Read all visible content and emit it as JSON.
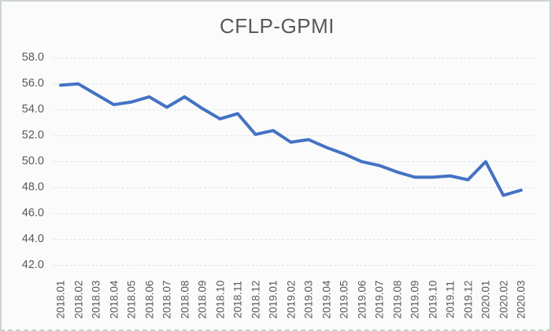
{
  "chart": {
    "title": "CFLP-GPMI"
  },
  "chart_data": {
    "type": "line",
    "title": "CFLP-GPMI",
    "categories": [
      "2018.01",
      "2018.02",
      "2018.03",
      "2018.04",
      "2018.05",
      "2018.06",
      "2018.07",
      "2018.08",
      "2018.09",
      "2018.10",
      "2018.11",
      "2018.12",
      "2019.01",
      "2019.02",
      "2019.03",
      "2019.04",
      "2019.05",
      "2019.06",
      "2019.07",
      "2019.08",
      "2019.09",
      "2019.10",
      "2019.11",
      "2019.12",
      "2020.01",
      "2020.02",
      "2020.03"
    ],
    "values": [
      55.9,
      56.0,
      55.2,
      54.4,
      54.6,
      55.0,
      54.2,
      55.0,
      54.1,
      53.3,
      53.7,
      52.1,
      52.4,
      51.5,
      51.7,
      51.1,
      50.6,
      50.0,
      49.7,
      49.2,
      48.8,
      48.8,
      48.9,
      48.6,
      50.0,
      47.4,
      47.8
    ],
    "ylim": [
      42,
      58
    ],
    "ytick_step": 2,
    "ytick_labels": [
      "58.0",
      "56.0",
      "54.0",
      "52.0",
      "50.0",
      "48.0",
      "46.0",
      "44.0",
      "42.0"
    ],
    "xlabel": "",
    "ylabel": "",
    "grid": true,
    "legend_position": "none",
    "line_color": "#4472c4",
    "gridline_color": "#d3e2e6",
    "text_color": "#595959"
  }
}
